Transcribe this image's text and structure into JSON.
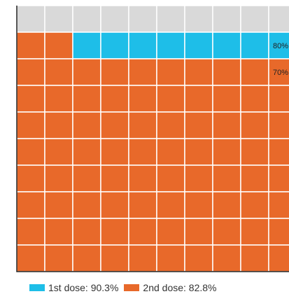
{
  "chart_data": {
    "type": "waffle",
    "grid": {
      "rows": 10,
      "cols": 11,
      "total_cells": 100
    },
    "series": [
      {
        "name": "1st dose",
        "value": 90.3,
        "color": "#1EBEE8"
      },
      {
        "name": "2nd dose",
        "value": 82.8,
        "color": "#E8692A"
      }
    ],
    "empty_color": "#D9D9D9",
    "row_labels": [
      {
        "row": 2,
        "text": "80%"
      },
      {
        "row": 3,
        "text": "70%"
      }
    ],
    "legend": [
      {
        "label": "1st dose: 90.3%",
        "color": "#1EBEE8"
      },
      {
        "label": "2nd dose: 82.8%",
        "color": "#E8692A"
      }
    ],
    "legend_position": "bottom"
  }
}
